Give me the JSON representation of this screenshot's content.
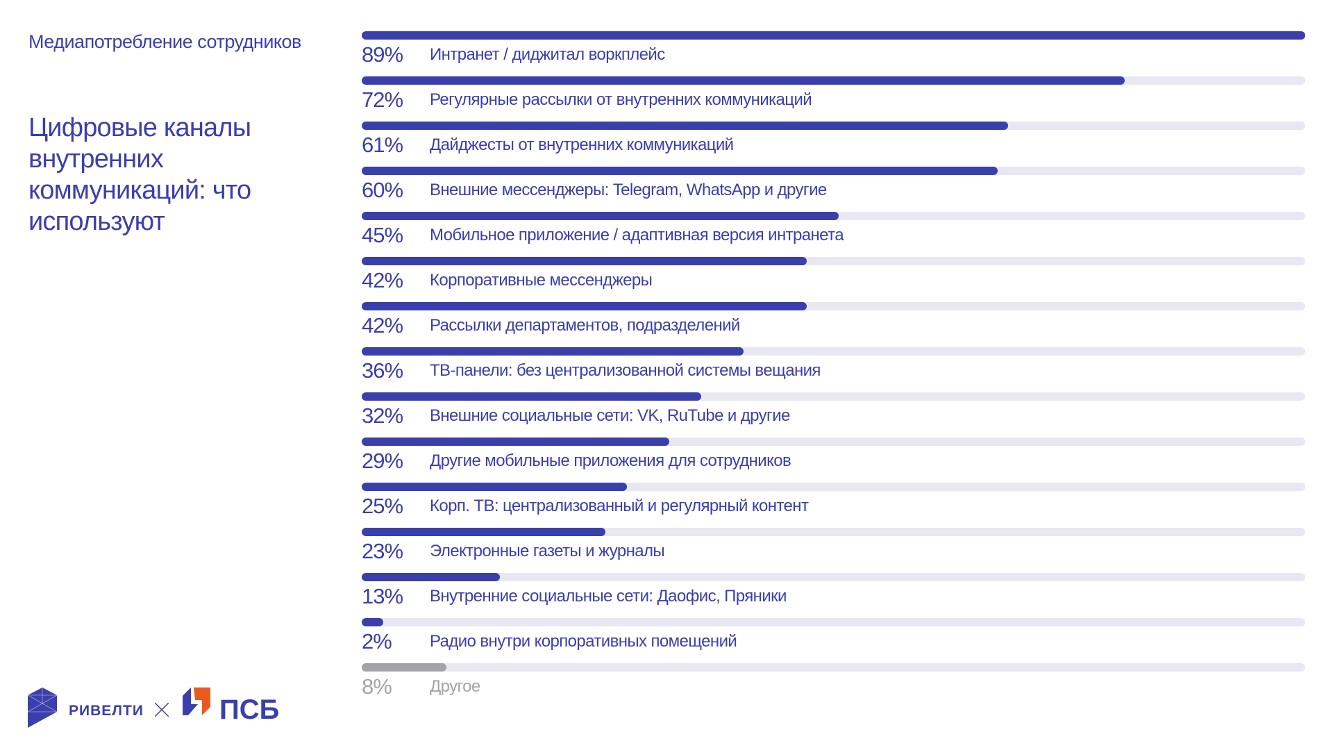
{
  "header": {
    "subtitle": "Медиапотребление сотрудников",
    "title": "Цифровые каналы внутренних коммуникаций: что используют"
  },
  "logos": {
    "reveal": "РИВЕЛТИ",
    "separator": "×",
    "psb": "ПСБ"
  },
  "colors": {
    "bar": "#3b3fab",
    "track": "#e8e8f2",
    "other": "#a3a3a8",
    "psb_orange": "#ea5a1e"
  },
  "chart_data": {
    "type": "bar",
    "orientation": "horizontal",
    "xlim": [
      0,
      89
    ],
    "categories": [
      "Интранет / диджитал воркплейс",
      "Регулярные рассылки от внутренних коммуникаций",
      "Дайджесты от внутренних коммуникаций",
      "Внешние мессенджеры: Telegram, WhatsApp и другие",
      "Мобильное приложение / адаптивная версия интранета",
      "Корпоративные мессенджеры",
      "Рассылки департаментов, подразделений",
      "ТВ-панели: без централизованной системы вещания",
      "Внешние социальные сети: VK, RuTube и другие",
      "Другие мобильные приложения для сотрудников",
      "Корп. ТВ: централизованный и регулярный контент",
      "Электронные газеты и журналы",
      "Внутренние социальные сети: Даофис, Пряники",
      "Радио внутри корпоративных помещений",
      "Другое"
    ],
    "values": [
      89,
      72,
      61,
      60,
      45,
      42,
      42,
      36,
      32,
      29,
      25,
      23,
      13,
      2,
      8
    ],
    "labels": [
      "89%",
      "72%",
      "61%",
      "60%",
      "45%",
      "42%",
      "42%",
      "36%",
      "32%",
      "29%",
      "25%",
      "23%",
      "13%",
      "2%",
      "8%"
    ]
  }
}
